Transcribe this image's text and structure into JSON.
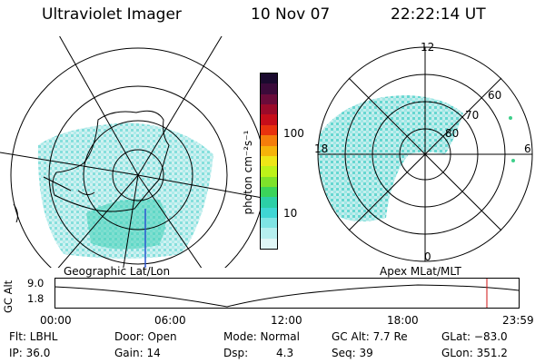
{
  "header": {
    "title": "Ultraviolet Imager",
    "date": "10 Nov 07",
    "time": "22:22:14 UT"
  },
  "colorbar": {
    "unit_label": "photon cm⁻²s⁻¹",
    "ticks": [
      "100",
      "10"
    ],
    "colors": [
      "#1a0a2e",
      "#3b0a3a",
      "#6a0b3a",
      "#9b0a2a",
      "#c60d1a",
      "#e8320e",
      "#f57d0b",
      "#f6b30a",
      "#eee617",
      "#bdf219",
      "#7ee22b",
      "#3bd45a",
      "#2ccfa6",
      "#3fd6d4",
      "#7fe4e4",
      "#b6efef",
      "#e0f6f6"
    ]
  },
  "left_panel": {
    "label": "Geographic Lat/Lon"
  },
  "right_panel": {
    "label": "Apex  MLat/MLT",
    "mlt_labels": [
      "12",
      "18",
      "6",
      "0"
    ],
    "mlat_labels": [
      "60",
      "70",
      "80"
    ]
  },
  "timeline": {
    "ylabel": "GC Alt",
    "ymax": "9.0",
    "ymin": "1.8",
    "xticks": [
      "00:00",
      "06:00",
      "12:00",
      "18:00",
      "23:59"
    ],
    "marker_color": "#d01010"
  },
  "status": {
    "flt": "Flt: LBHL",
    "ip": "IP: 36.0",
    "door": "Door: Open",
    "gain": "Gain: 14",
    "mode": "Mode: Normal",
    "dsp_label": "Dsp:",
    "dsp_value": "4.3",
    "gc_alt": "GC Alt: 7.7 Re",
    "seq": "Seq: 39",
    "glat": "GLat: −83.0",
    "glon": "GLon: 351.2"
  }
}
